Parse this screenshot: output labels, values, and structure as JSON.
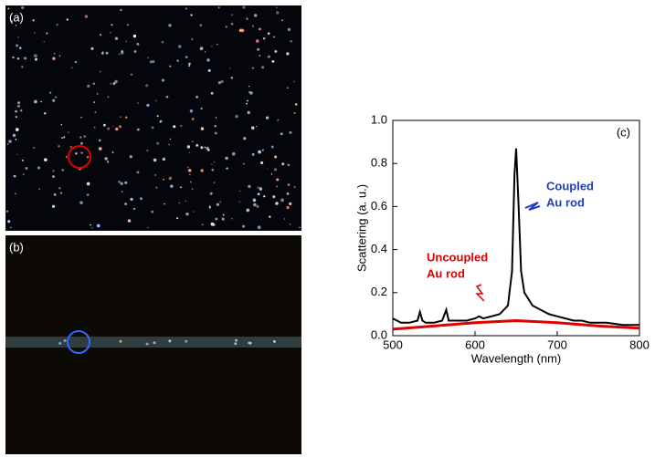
{
  "panels": {
    "a": "(a)",
    "b": "(b)"
  },
  "chart_data": {
    "type": "line",
    "panel_label": "(c)",
    "x_label": "Wavelength (nm)",
    "y_label": "Scattering (a. u.)",
    "xlim": [
      500,
      800
    ],
    "xticks": [
      500,
      600,
      700,
      800
    ],
    "ylim": [
      0,
      1
    ],
    "yticks": [
      {
        "value": 0,
        "label": "0.0"
      },
      0.2,
      0.4,
      0.6,
      0.8,
      {
        "value": 1,
        "label": "1.0"
      }
    ],
    "series": [
      {
        "color": "#000000",
        "x": [
          500,
          510,
          520,
          530,
          533,
          536,
          540,
          550,
          560,
          565,
          568,
          570,
          580,
          590,
          600,
          605,
          610,
          620,
          630,
          640,
          645,
          648,
          650,
          653,
          656,
          660,
          670,
          680,
          690,
          700,
          710,
          720,
          730,
          740,
          750,
          760,
          770,
          780,
          790,
          800
        ],
        "values": [
          0.08,
          0.06,
          0.06,
          0.07,
          0.11,
          0.07,
          0.06,
          0.06,
          0.07,
          0.12,
          0.07,
          0.07,
          0.07,
          0.07,
          0.08,
          0.09,
          0.08,
          0.09,
          0.1,
          0.14,
          0.3,
          0.75,
          0.87,
          0.6,
          0.3,
          0.2,
          0.14,
          0.12,
          0.1,
          0.09,
          0.08,
          0.07,
          0.07,
          0.06,
          0.06,
          0.06,
          0.055,
          0.05,
          0.05,
          0.05
        ]
      },
      {
        "color": "#e00000",
        "x": [
          500,
          550,
          600,
          650,
          700,
          750,
          800
        ],
        "values": [
          0.03,
          0.045,
          0.06,
          0.07,
          0.06,
          0.045,
          0.035
        ]
      }
    ],
    "annotations": [
      {
        "lines": [
          "Coupled",
          "Au rod"
        ],
        "color": "#1f3fbf"
      },
      {
        "lines": [
          "Uncoupled",
          "Au rod"
        ],
        "color": "#e00000"
      }
    ]
  }
}
